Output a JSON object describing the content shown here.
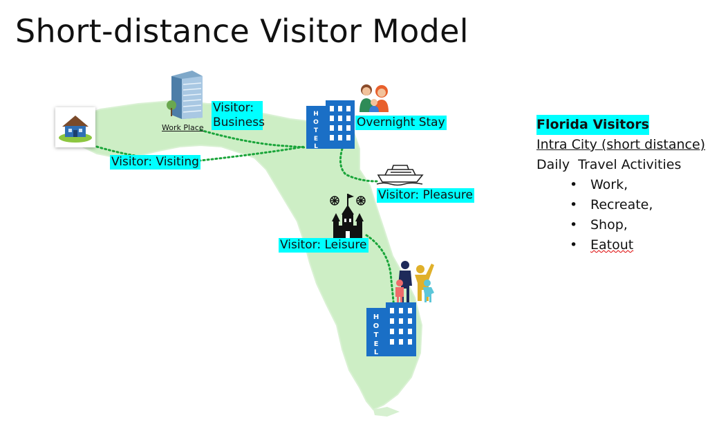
{
  "title": "Short-distance Visitor Model",
  "places": {
    "work_place": "Work Place"
  },
  "labels": {
    "business": "Visitor: Business",
    "overnight": "Overnight Stay",
    "visiting": "Visitor: Visiting",
    "pleasure": "Visitor: Pleasure",
    "leisure": "Visitor: Leisure"
  },
  "info": {
    "heading": "Florida Visitors",
    "subheading": "Intra City (short distance)",
    "activities_title": "Daily  Travel Activities",
    "activities": [
      "Work,",
      "Recreate,",
      "Shop,",
      "Eatout"
    ]
  },
  "icons": [
    "house-icon",
    "office-building-icon",
    "hotel-icon",
    "family-icon",
    "cruise-ship-icon",
    "castle-icon",
    "family-silhouette-icon"
  ],
  "colors": {
    "tag_bg": "#00ffff",
    "map_fill": "#cdeec5",
    "route": "#1aa53a",
    "hotel": "#1a6fc6"
  }
}
